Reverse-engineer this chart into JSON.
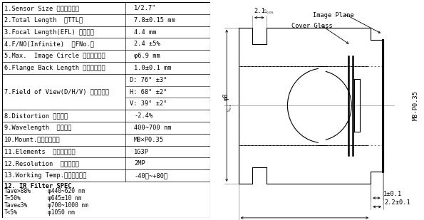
{
  "table_rows": [
    {
      "label": "1.Sensor Size （芯片尺寸）",
      "value": "1/2.7\""
    },
    {
      "label": "2.Total Length  （TTL）",
      "value": "7.8±0.15 mm"
    },
    {
      "label": "3.Focal Length(EFL) （焦距）",
      "value": "4.4 mm"
    },
    {
      "label": "4.F/NO(Infinite)  （FNo.）",
      "value": "2.4 ±5%"
    },
    {
      "label": "5.Max.  Image Circle （最大像高）",
      "value": "φ6.9 mm"
    },
    {
      "label": "6.Flange Back Length （机械后焦）",
      "value": "1.0±0.1 mm"
    },
    {
      "label": "7.Field of View(D/H/V) （視场角）",
      "value_fov": [
        "D: 76° ±3°",
        "H: 68° ±2°",
        "V: 39° ±2°"
      ]
    },
    {
      "label": "8.Distortion （畜变）",
      "value": "-2.4%"
    },
    {
      "label": "9.Wavelength  （波长）",
      "value": "400~700 nm"
    },
    {
      "label": "10.Mount.（螺牙尺寸）",
      "value": "M8×P0.35"
    },
    {
      "label": "11.Elements  （镜片组数）",
      "value": "1G3P"
    },
    {
      "label": "12.Resolution  （分辨率）",
      "value": "2MP"
    },
    {
      "label": "13.Working Temp.（工作温度）",
      "value": "-40℃~+80℃"
    }
  ],
  "ir_filter_title": "12. IR Filter SPEC.",
  "ir_filter_lines": [
    [
      "Tave>88%",
      "φ440~620 nm"
    ],
    [
      "T=50%",
      "φ645±10 nm"
    ],
    [
      "Tave≤3%",
      "φ700~1000 nm"
    ],
    [
      "T<5%",
      "φ1050 nm"
    ]
  ],
  "bg_color": "#ffffff",
  "line_color": "#000000",
  "text_color": "#000000",
  "dim_color": "#555566",
  "table_font_size": 6.2,
  "diagram_font_size": 6.2,
  "col_split": 0.595
}
